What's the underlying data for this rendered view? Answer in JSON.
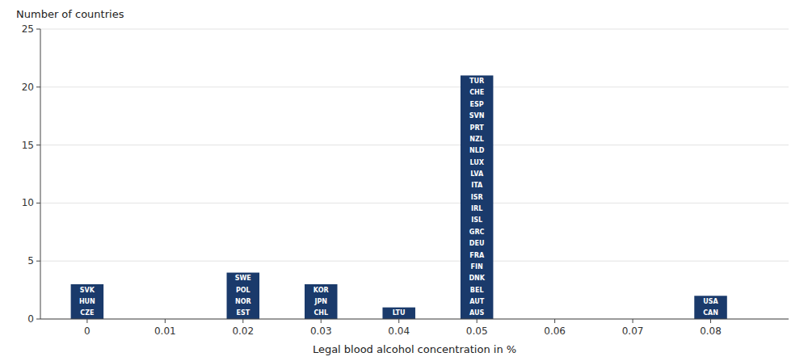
{
  "chart_data": {
    "type": "bar",
    "x": [
      0,
      0.02,
      0.03,
      0.04,
      0.05,
      0.08
    ],
    "values": [
      3,
      4,
      3,
      1,
      21,
      2
    ],
    "annotations": [
      [
        "SVK",
        "HUN",
        "CZE"
      ],
      [
        "SWE",
        "POL",
        "NOR",
        "EST"
      ],
      [
        "KOR",
        "JPN",
        "CHL"
      ],
      [
        "LTU"
      ],
      [
        "TUR",
        "CHE",
        "ESP",
        "SVN",
        "PRT",
        "NZL",
        "NLD",
        "LUX",
        "LVA",
        "ITA",
        "ISR",
        "IRL",
        "ISL",
        "GRC",
        "DEU",
        "FRA",
        "FIN",
        "DNK",
        "BEL",
        "AUT",
        "AUS"
      ],
      [
        "USA",
        "CAN"
      ]
    ],
    "color": "#1a3a6b",
    "xlabel": "Legal blood alcohol concentration in %",
    "ylabel": "Number of countries",
    "xlim": [
      -0.006,
      0.09
    ],
    "ylim": [
      0,
      25
    ],
    "xticks": [
      0,
      0.01,
      0.02,
      0.03,
      0.04,
      0.05,
      0.06,
      0.07,
      0.08
    ],
    "yticks": [
      0,
      5,
      10,
      15,
      20,
      25
    ],
    "grid": true
  }
}
